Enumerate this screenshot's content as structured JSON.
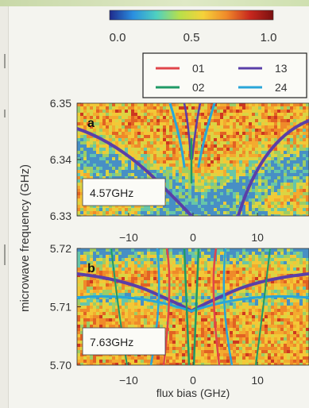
{
  "chart_data": {
    "type": "heatmap",
    "colorbar": {
      "ticks": [
        "0.0",
        "0.5",
        "1.0"
      ],
      "colors": [
        "#1f2a8c",
        "#2a8fe0",
        "#4fd0c0",
        "#b8e04a",
        "#f5d23a",
        "#f08a2a",
        "#c8281e",
        "#7a1010"
      ]
    },
    "legend": [
      {
        "name": "01",
        "color": "#e0454a"
      },
      {
        "name": "02",
        "color": "#1f9a66"
      },
      {
        "name": "13",
        "color": "#5a3fa8"
      },
      {
        "name": "24",
        "color": "#29a6d8"
      }
    ],
    "panels": [
      {
        "label": "a",
        "annotation": "4.57GHz",
        "ylim": [
          6.33,
          6.35
        ],
        "yticks": [
          "6.35",
          "6.34",
          "6.33"
        ],
        "xlim": [
          -18,
          18
        ],
        "xticks": [
          "−10",
          "0",
          "10"
        ],
        "xtick_values": [
          -10,
          0,
          10
        ]
      },
      {
        "label": "b",
        "annotation": "7.63GHz",
        "ylim": [
          5.7,
          5.72
        ],
        "yticks": [
          "5.72",
          "5.71",
          "5.70"
        ],
        "xlim": [
          -18,
          18
        ],
        "xticks": [
          "−10",
          "0",
          "10"
        ],
        "xtick_values": [
          -10,
          0,
          10
        ]
      }
    ],
    "ylabel": "microwave frequency (GHz)",
    "xlabel": "flux bias (GHz)"
  }
}
